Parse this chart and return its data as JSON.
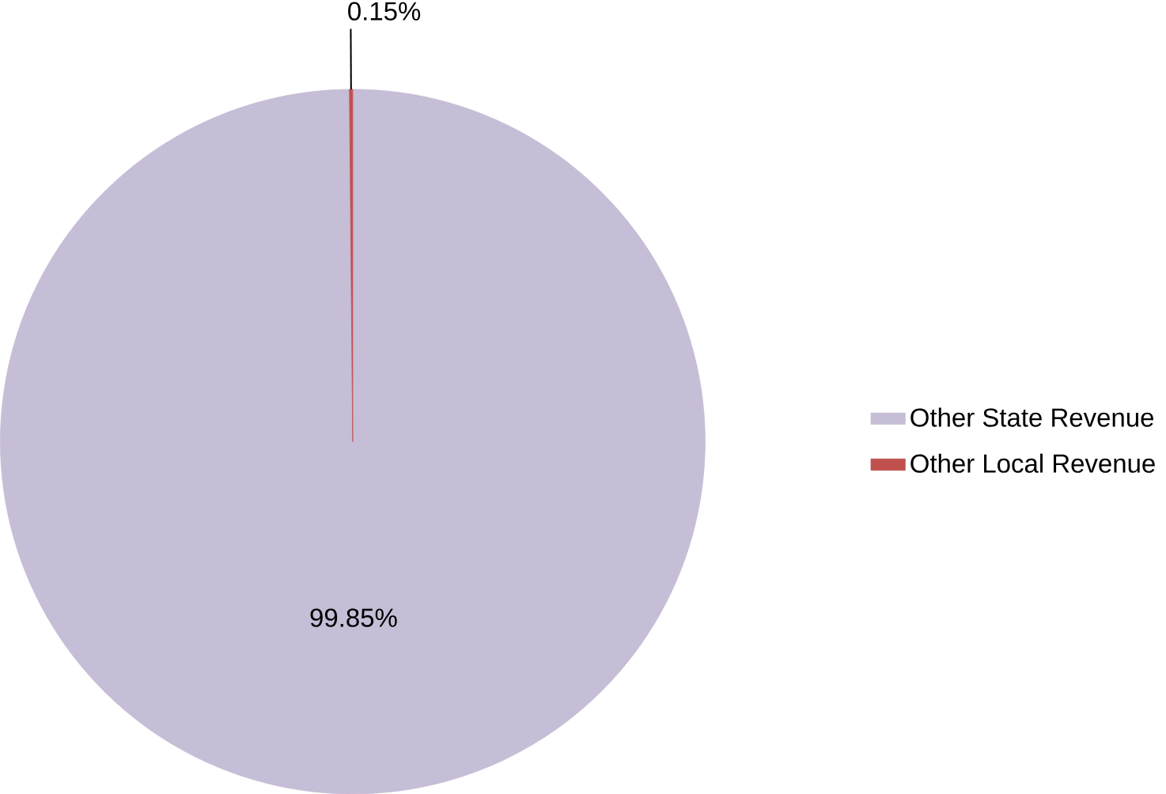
{
  "chart_data": {
    "type": "pie",
    "categories": [
      "Other State Revenue",
      "Other Local Revenue"
    ],
    "values": [
      99.85,
      0.15
    ],
    "colors": [
      "#c6bdd6",
      "#c0504d"
    ],
    "value_labels": [
      "99.85%",
      "0.15%"
    ],
    "legend": "right"
  }
}
